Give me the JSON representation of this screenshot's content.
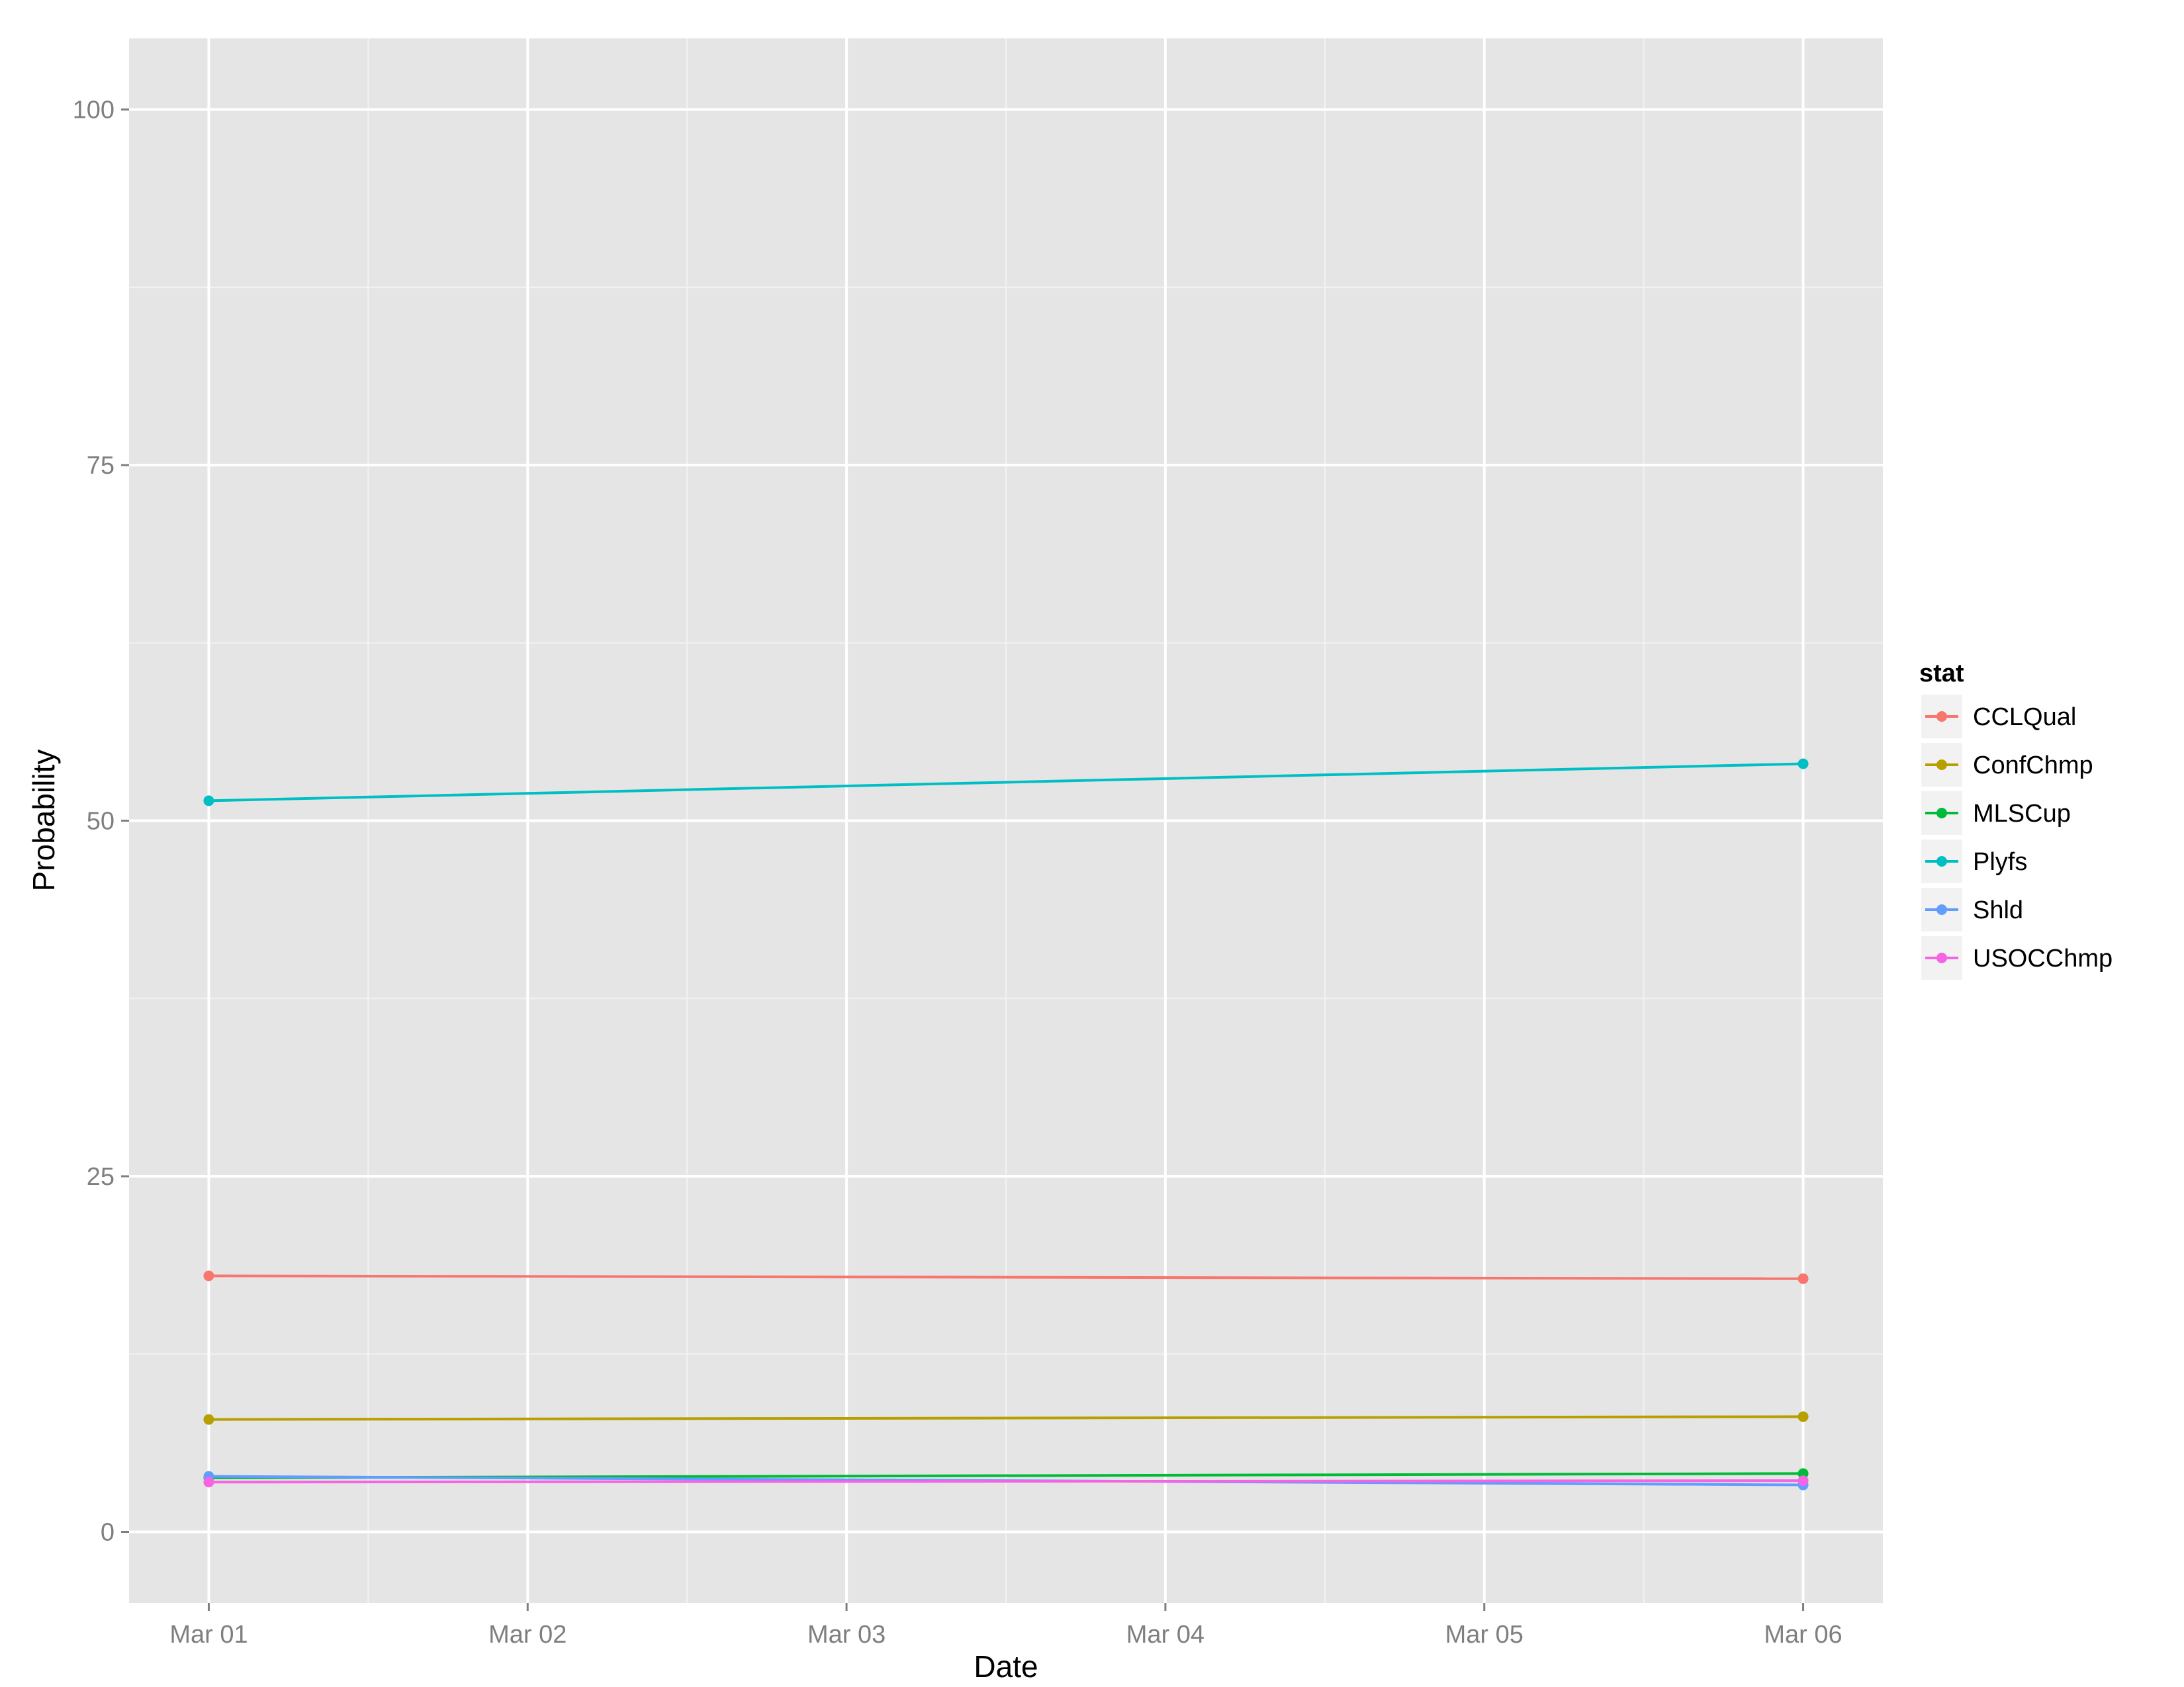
{
  "chart_data": {
    "type": "line",
    "xlabel": "Date",
    "ylabel": "Probability",
    "x": [
      "Mar 01",
      "Mar 06"
    ],
    "x_ticks": [
      "Mar 01",
      "Mar 02",
      "Mar 03",
      "Mar 04",
      "Mar 05",
      "Mar 06"
    ],
    "y_ticks": [
      0,
      25,
      50,
      75,
      100
    ],
    "xlim": [
      "Feb 28.75",
      "Mar 06.25"
    ],
    "ylim": [
      -5,
      105
    ],
    "grid": true,
    "legend": {
      "title": "stat",
      "position": "right"
    },
    "series": [
      {
        "name": "CCLQual",
        "color": "#F8766D",
        "values": [
          18.0,
          17.8
        ]
      },
      {
        "name": "ConfChmp",
        "color": "#B79F00",
        "values": [
          7.9,
          8.1
        ]
      },
      {
        "name": "MLSCup",
        "color": "#00BA38",
        "values": [
          3.8,
          4.1
        ]
      },
      {
        "name": "Plyfs",
        "color": "#00BFC4",
        "values": [
          51.4,
          54.0
        ]
      },
      {
        "name": "Shld",
        "color": "#619CFF",
        "values": [
          3.9,
          3.3
        ]
      },
      {
        "name": "USOCChmp",
        "color": "#F564E3",
        "values": [
          3.5,
          3.6
        ]
      }
    ]
  }
}
